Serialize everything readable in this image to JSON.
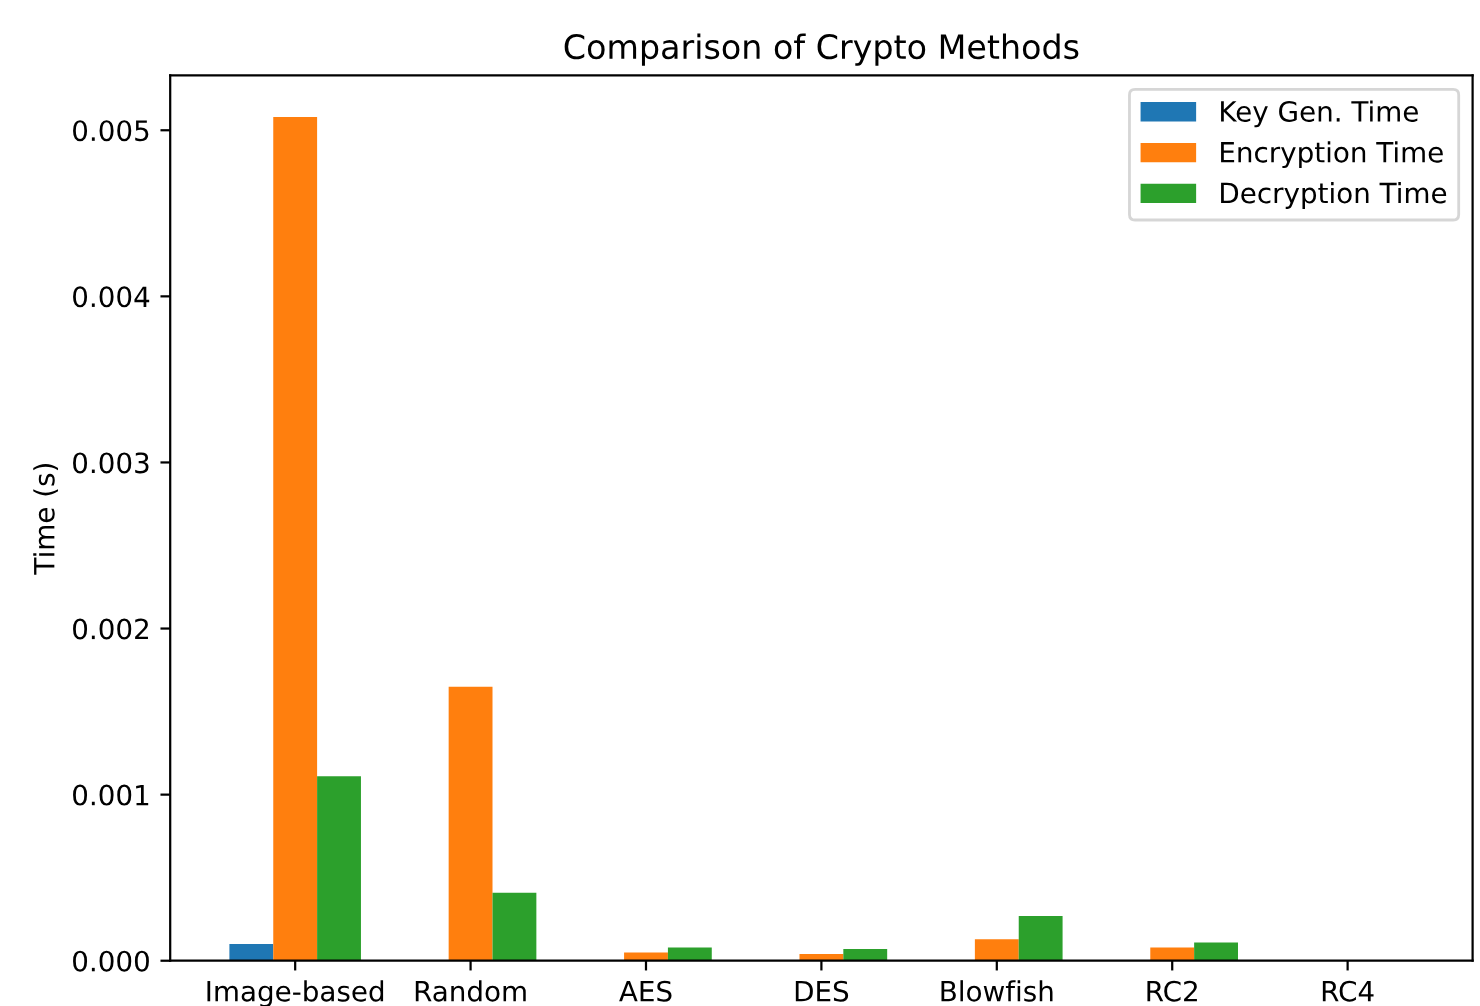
{
  "chart_data": {
    "type": "bar",
    "title": "Comparison of Crypto Methods",
    "ylabel": "Time (s)",
    "categories": [
      "Image-based",
      "Random",
      "AES",
      "DES",
      "Blowfish",
      "RC2",
      "RC4"
    ],
    "series": [
      {
        "name": "Key Gen. Time",
        "color": "#1f77b4",
        "values": [
          0.0001,
          0,
          0,
          0,
          0,
          0,
          0
        ]
      },
      {
        "name": "Encryption Time",
        "color": "#ff7f0e",
        "values": [
          0.00508,
          0.00165,
          5e-05,
          4e-05,
          0.00013,
          8e-05,
          0
        ]
      },
      {
        "name": "Decryption Time",
        "color": "#2ca02c",
        "values": [
          0.00111,
          0.00041,
          8e-05,
          7e-05,
          0.00027,
          0.00011,
          0
        ]
      }
    ],
    "ylim": [
      0,
      0.00533
    ],
    "yticks": [
      {
        "value": 0,
        "label": "0.000"
      },
      {
        "value": 0.001,
        "label": "0.001"
      },
      {
        "value": 0.002,
        "label": "0.002"
      },
      {
        "value": 0.003,
        "label": "0.003"
      },
      {
        "value": 0.004,
        "label": "0.004"
      },
      {
        "value": 0.005,
        "label": "0.005"
      }
    ],
    "legend": "top right",
    "grid": false
  }
}
